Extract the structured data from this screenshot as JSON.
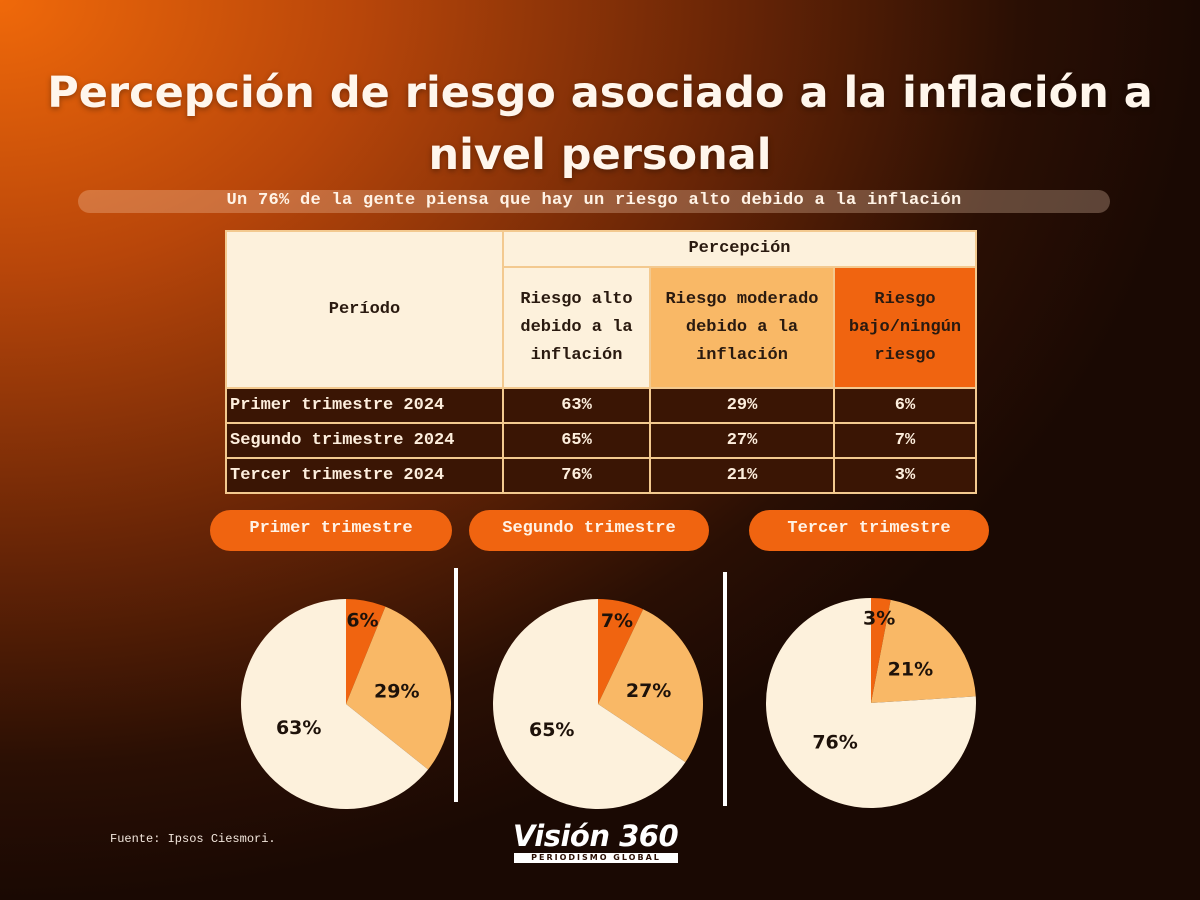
{
  "title": "Percepción de riesgo asociado a la  inflación a nivel personal",
  "subtitle": "Un 76% de la gente piensa que hay un riesgo alto debido a la inflación",
  "table": {
    "period_header": "Período",
    "perception_header": "Percepción",
    "col_alto": "Riesgo alto debido a la inflación",
    "col_moderado": "Riesgo moderado debido a la inflación",
    "col_bajo": "Riesgo bajo/ningún riesgo",
    "rows": [
      {
        "period": "Primer trimestre 2024",
        "alto": "63%",
        "moderado": "29%",
        "bajo": "6%"
      },
      {
        "period": "Segundo trimestre 2024",
        "alto": "65%",
        "moderado": "27%",
        "bajo": "7%"
      },
      {
        "period": "Tercer trimestre 2024",
        "alto": "76%",
        "moderado": "21%",
        "bajo": "3%"
      }
    ]
  },
  "colors": {
    "alto": "#fdf1dc",
    "moderado": "#f9b866",
    "bajo": "#f06410"
  },
  "chart_data": [
    {
      "type": "pie",
      "title": "Primer trimestre",
      "categories": [
        "Riesgo alto debido a la inflación",
        "Riesgo moderado debido a la inflación",
        "Riesgo bajo/ningún riesgo"
      ],
      "values": [
        63,
        29,
        6
      ],
      "labels": [
        "63%",
        "29%",
        "6%"
      ]
    },
    {
      "type": "pie",
      "title": "Segundo trimestre",
      "categories": [
        "Riesgo alto debido a la inflación",
        "Riesgo moderado debido a la inflación",
        "Riesgo bajo/ningún riesgo"
      ],
      "values": [
        65,
        27,
        7
      ],
      "labels": [
        "65%",
        "27%",
        "7%"
      ]
    },
    {
      "type": "pie",
      "title": "Tercer trimestre",
      "categories": [
        "Riesgo alto debido a la inflación",
        "Riesgo moderado debido a la inflación",
        "Riesgo bajo/ningún riesgo"
      ],
      "values": [
        76,
        21,
        3
      ],
      "labels": [
        "76%",
        "21%",
        "3%"
      ]
    }
  ],
  "source": "Fuente: Ipsos Ciesmori.",
  "logo": {
    "name": "Visión 360",
    "tagline": "PERIODISMO GLOBAL"
  }
}
